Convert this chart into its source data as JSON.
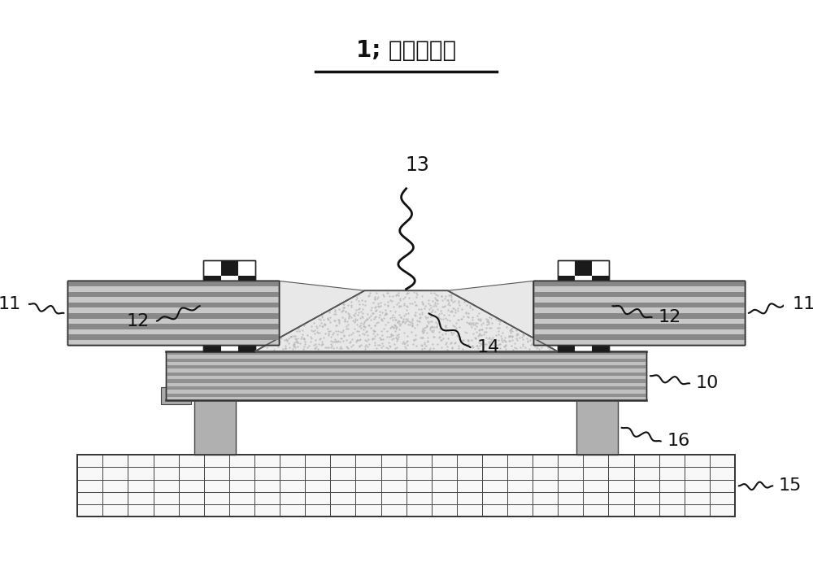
{
  "title": "1; 电声换能器",
  "title_fontsize": 20,
  "bg_color": "#ffffff",
  "label_fontsize": 16,
  "labels": {
    "11_left": "11",
    "11_right": "11",
    "12_left": "12",
    "12_right": "12",
    "13": "13",
    "14": "14",
    "10": "10",
    "15": "15",
    "16": "16"
  },
  "colors": {
    "magnet_light": "#c8c8c8",
    "magnet_dark": "#888888",
    "diaphragm_fill": "#e8e8e8",
    "diaphragm_dot": "#b0b0b0",
    "checker_black": "#1a1a1a",
    "checker_white": "#ffffff",
    "frame_light": "#c0c0c0",
    "frame_dark": "#909090",
    "pcb_bg": "#f8f8f8",
    "pcb_grid": "#444444",
    "leg_color": "#aaaaaa",
    "leg_dark": "#888888",
    "outline": "#111111",
    "white_space": "#ffffff"
  }
}
